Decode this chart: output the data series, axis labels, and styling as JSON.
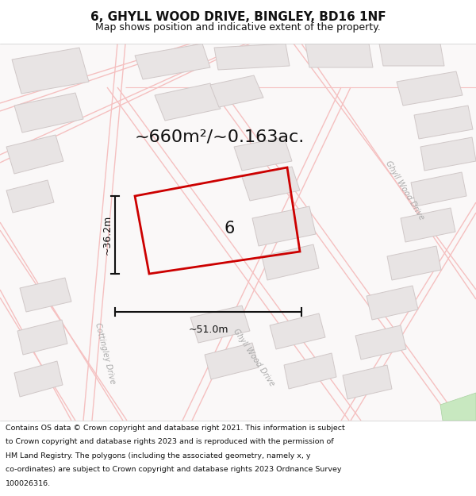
{
  "title_line1": "6, GHYLL WOOD DRIVE, BINGLEY, BD16 1NF",
  "title_line2": "Map shows position and indicative extent of the property.",
  "area_label": "~660m²/~0.163ac.",
  "width_label": "~51.0m",
  "height_label": "~36.2m",
  "number_label": "6",
  "street_label_cottingley": "Cottingley Drive",
  "street_label_ghyll_center": "Ghyll Wood Drive",
  "street_label_ghyll_right": "Ghyll Wood Drive",
  "footer_text": "Contains OS data © Crown copyright and database right 2021. This information is subject to Crown copyright and database rights 2023 and is reproduced with the permission of HM Land Registry. The polygons (including the associated geometry, namely x, y co-ordinates) are subject to Crown copyright and database rights 2023 Ordnance Survey 100026316.",
  "map_bg": "#ffffff",
  "road_color": "#f5c0c0",
  "road_fill": "#fdf0f0",
  "building_edge": "#d0c8c8",
  "building_fill": "#e8e4e4",
  "highlight_color": "#cc0000",
  "text_color": "#111111",
  "footer_bg": "#ffffff",
  "title_bg": "#ffffff",
  "green_color": "#c8e8c0",
  "dim_color": "#111111",
  "street_text_color": "#aaaaaa"
}
